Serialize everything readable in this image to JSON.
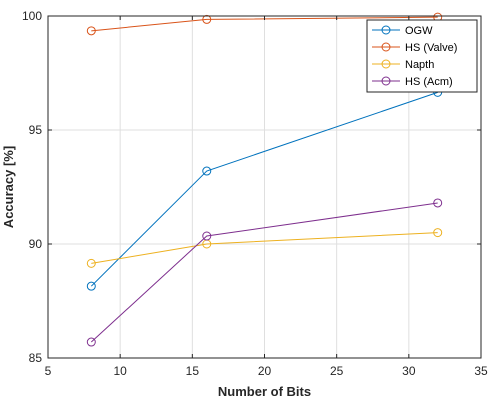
{
  "chart_data": {
    "type": "line",
    "title": "",
    "xlabel": "Number of Bits",
    "ylabel": "Accuracy [%]",
    "xlim": [
      5,
      35
    ],
    "ylim": [
      85,
      100
    ],
    "xticks": [
      5,
      10,
      15,
      20,
      25,
      30,
      35
    ],
    "yticks": [
      85,
      90,
      95,
      100
    ],
    "grid": true,
    "legend_position": "top-right",
    "x": [
      8,
      16,
      32
    ],
    "series": [
      {
        "name": "OGW",
        "values": [
          88.15,
          93.2,
          96.65
        ],
        "color": "#0072BD",
        "marker": "circle"
      },
      {
        "name": "HS (Valve)",
        "values": [
          99.35,
          99.85,
          99.95
        ],
        "color": "#D95319",
        "marker": "circle"
      },
      {
        "name": "Napth",
        "values": [
          89.15,
          90.0,
          90.5
        ],
        "color": "#EDB120",
        "marker": "circle"
      },
      {
        "name": "HS (Acm)",
        "values": [
          85.7,
          90.35,
          91.8
        ],
        "color": "#7E2F8E",
        "marker": "circle"
      }
    ]
  }
}
